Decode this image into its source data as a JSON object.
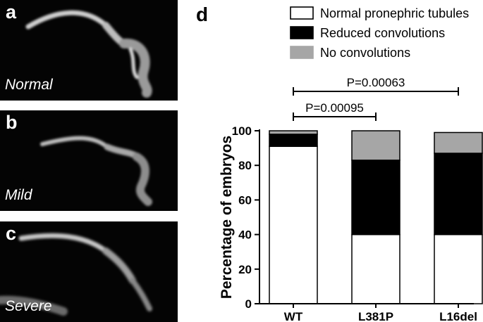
{
  "panels": [
    {
      "letter": "a",
      "label": "Normal"
    },
    {
      "letter": "b",
      "label": "Mild"
    },
    {
      "letter": "c",
      "label": "Severe"
    }
  ],
  "chart_letter": "d",
  "chart_data": {
    "type": "bar",
    "stacked": true,
    "categories": [
      "WT",
      "L381P",
      "L16del"
    ],
    "series": [
      {
        "name": "Normal pronephric tubules",
        "values": [
          91,
          40,
          40
        ],
        "color": "#ffffff"
      },
      {
        "name": "Reduced convolutions",
        "values": [
          7,
          43,
          47
        ],
        "color": "#000000"
      },
      {
        "name": "No convolutions",
        "values": [
          2,
          17,
          12
        ],
        "color": "#a6a6a6"
      }
    ],
    "ylabel": "Percentage of embryos",
    "xlabel": "",
    "ylim": [
      0,
      100
    ],
    "yticks": [
      0,
      20,
      40,
      60,
      80,
      100
    ],
    "legend_position": "top",
    "annotations": [
      {
        "text": "P=0.00063",
        "from": "WT",
        "to": "L16del"
      },
      {
        "text": "P=0.00095",
        "from": "WT",
        "to": "L381P"
      }
    ]
  }
}
